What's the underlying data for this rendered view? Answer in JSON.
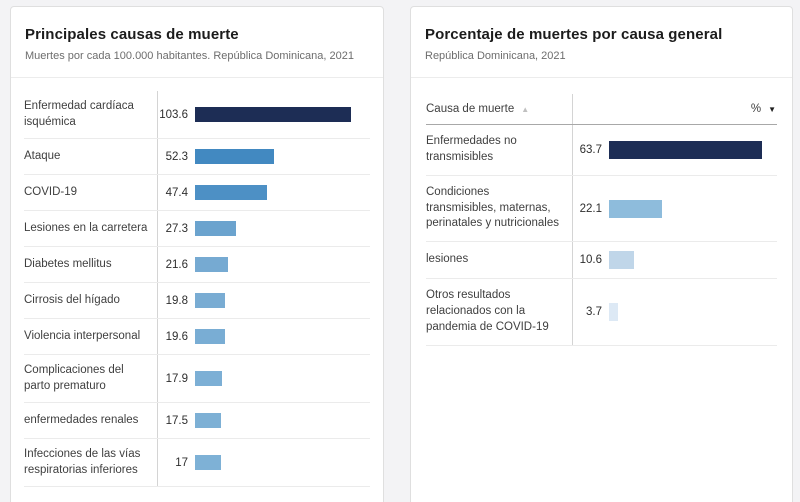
{
  "left_panel": {
    "title": "Principales causas de muerte",
    "subtitle": "Muertes por cada 100.000 habitantes. República Dominicana, 2021"
  },
  "right_panel": {
    "title": "Porcentaje de muertes por causa general",
    "subtitle": "República Dominicana, 2021",
    "table_header": {
      "cause_label": "Causa de muerte",
      "sort_asc_icon": "▲",
      "percent_label": "%",
      "sort_desc_icon": "▼"
    }
  },
  "colors": {
    "accent_dark_navy": "#1d2d55",
    "page_background": "#f3f3f5",
    "card_background": "#ffffff"
  },
  "chart_data": [
    {
      "type": "bar",
      "orientation": "horizontal",
      "title": "Principales causas de muerte",
      "subtitle": "Muertes por cada 100.000 habitantes. República Dominicana, 2021",
      "xlabel": "Muertes por cada 100.000 habitantes",
      "xlim": [
        0,
        116
      ],
      "grid": false,
      "legend": "none",
      "categories": [
        "Enfermedad cardíaca isquémica",
        "Ataque",
        "COVID-19",
        "Lesiones en la carretera",
        "Diabetes mellitus",
        "Cirrosis del hígado",
        "Violencia interpersonal",
        "Complicaciones del parto prematuro",
        "enfermedades renales",
        "Infecciones de las vías respiratorias inferiores"
      ],
      "values": [
        103.6,
        52.3,
        47.4,
        27.3,
        21.6,
        19.8,
        19.6,
        17.9,
        17.5,
        17
      ],
      "colors": [
        "#1d2d55",
        "#4289c1",
        "#4d90c5",
        "#6ba3ce",
        "#76aad2",
        "#79acd3",
        "#79add4",
        "#7cafd5",
        "#7db0d5",
        "#7eb1d6"
      ]
    },
    {
      "type": "bar",
      "orientation": "horizontal",
      "title": "Porcentaje de muertes por causa general",
      "subtitle": "República Dominicana, 2021",
      "xlabel": "%",
      "xlim": [
        0,
        70
      ],
      "grid": false,
      "legend": "none",
      "categories": [
        "Enfermedades no transmisibles",
        "Condiciones transmisibles, maternas, perinatales y nutricionales",
        "lesiones",
        "Otros resultados relacionados con la pandemia de COVID-19"
      ],
      "values": [
        63.7,
        22.1,
        10.6,
        3.7
      ],
      "colors": [
        "#1d2d55",
        "#8ebcdc",
        "#c0d6e9",
        "#dde9f5"
      ]
    }
  ]
}
